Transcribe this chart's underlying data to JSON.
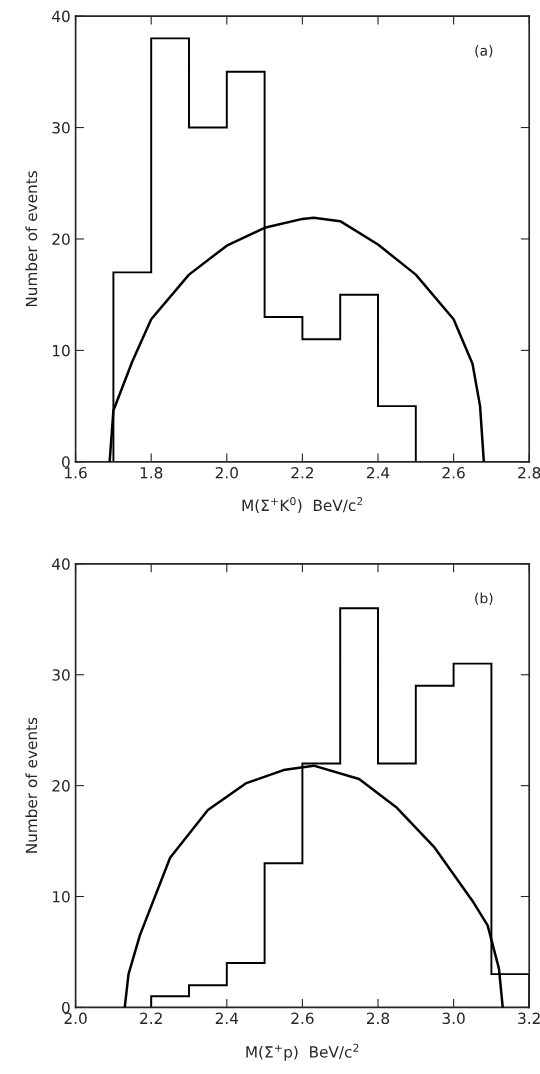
{
  "chart_data": [
    {
      "type": "histogram",
      "xlabel": "M(Σ$^{+}$K$^{0}$)  BeV/c$^{2}$",
      "ylabel": "Number of events",
      "annotations": [
        "(a)"
      ],
      "color": "#000000",
      "bins": [
        1.7,
        1.8,
        1.9,
        2.0,
        2.1,
        2.2,
        2.3,
        2.4,
        2.5
      ],
      "values": [
        17,
        38,
        30,
        35,
        13,
        11,
        15,
        5
      ],
      "series": [
        {
          "type": "line",
          "color": "#000000",
          "x": [
            1.69,
            1.7,
            1.75,
            1.8,
            1.9,
            2.0,
            2.1,
            2.2,
            2.23,
            2.3,
            2.4,
            2.5,
            2.6,
            2.65,
            2.67,
            2.68
          ],
          "values": [
            0,
            4.6,
            9,
            12.8,
            16.8,
            19.4,
            21,
            21.8,
            21.9,
            21.6,
            19.5,
            16.8,
            12.8,
            8.8,
            5,
            0
          ]
        }
      ],
      "xlim": [
        1.6,
        2.8
      ],
      "xticks": [
        {
          "value": 1.6,
          "label": "1.6"
        },
        {
          "value": 1.8,
          "label": "1.8"
        },
        {
          "value": 2.0,
          "label": "2.0"
        },
        {
          "value": 2.2,
          "label": "2.2"
        },
        {
          "value": 2.4,
          "label": "2.4"
        },
        {
          "value": 2.6,
          "label": "2.6"
        },
        {
          "value": 2.8,
          "label": "2.8"
        }
      ],
      "ylim": [
        0,
        40
      ],
      "yticks": [
        0,
        10,
        20,
        30,
        40
      ],
      "grid": false
    },
    {
      "type": "histogram",
      "xlabel": "M(Σ$^{+}$p)  BeV/c$^{2}$",
      "ylabel": "Number of events",
      "annotations": [
        "(b)"
      ],
      "color": "#000000",
      "bins": [
        2.2,
        2.3,
        2.4,
        2.5,
        2.6,
        2.7,
        2.8,
        2.9,
        3.0,
        3.1,
        3.2
      ],
      "values": [
        1,
        2,
        4,
        13,
        22,
        36,
        22,
        29,
        31,
        3
      ],
      "series": [
        {
          "type": "line",
          "color": "#000000",
          "x": [
            2.13,
            2.14,
            2.17,
            2.25,
            2.35,
            2.45,
            2.55,
            2.63,
            2.75,
            2.85,
            2.95,
            3.05,
            3.09,
            3.12,
            3.13
          ],
          "values": [
            0,
            3,
            6.5,
            13.5,
            17.8,
            20.2,
            21.4,
            21.8,
            20.6,
            18,
            14.4,
            9.6,
            7.4,
            3.5,
            0
          ]
        }
      ],
      "xlim": [
        2.0,
        3.2
      ],
      "xticks": [
        {
          "value": 2.0,
          "label": "2.0"
        },
        {
          "value": 2.2,
          "label": "2.2"
        },
        {
          "value": 2.4,
          "label": "2.4"
        },
        {
          "value": 2.6,
          "label": "2.6"
        },
        {
          "value": 2.8,
          "label": "2.8"
        },
        {
          "value": 3.0,
          "label": "3.0"
        },
        {
          "value": 3.2,
          "label": "3.2"
        }
      ],
      "ylim": [
        0,
        40
      ],
      "yticks": [
        0,
        10,
        20,
        30,
        40
      ],
      "grid": false
    }
  ]
}
